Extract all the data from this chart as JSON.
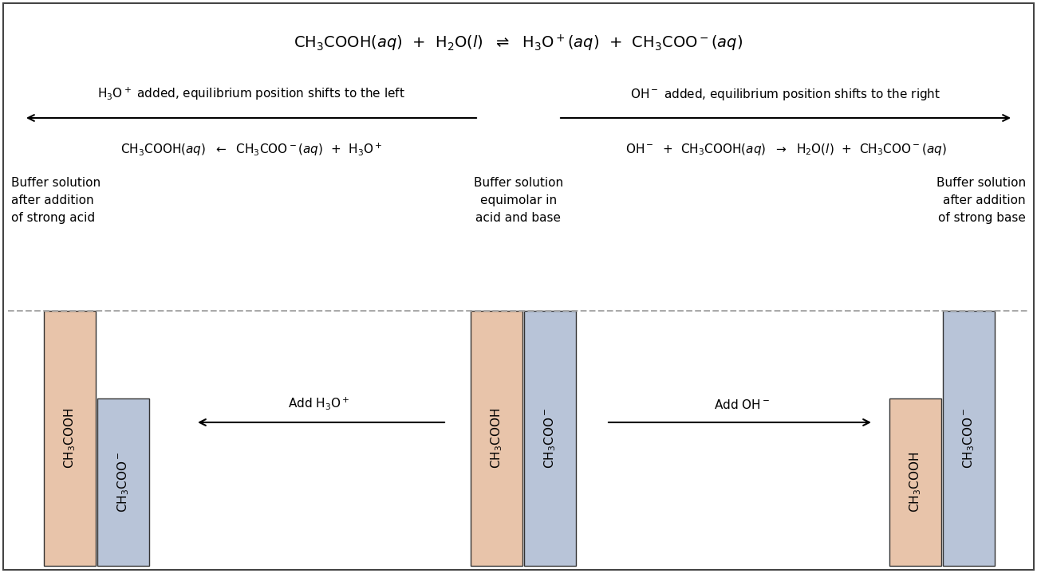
{
  "bg_color": "#ffffff",
  "bar_acid_color": "#e8c4aa",
  "bar_base_color": "#b8c4d8",
  "bar_acid_edge": "#333333",
  "bar_base_edge": "#333333",
  "dashed_line_color": "#aaaaaa",
  "text_color": "#000000",
  "figw": 13.0,
  "figh": 7.19,
  "dpi": 100,
  "left_buf_title": "Buffer solution\nafter addition\nof strong acid",
  "center_buf_title": "Buffer solution\nequimolar in\nacid and base",
  "right_buf_title": "Buffer solution\nafter addition\nof strong base"
}
